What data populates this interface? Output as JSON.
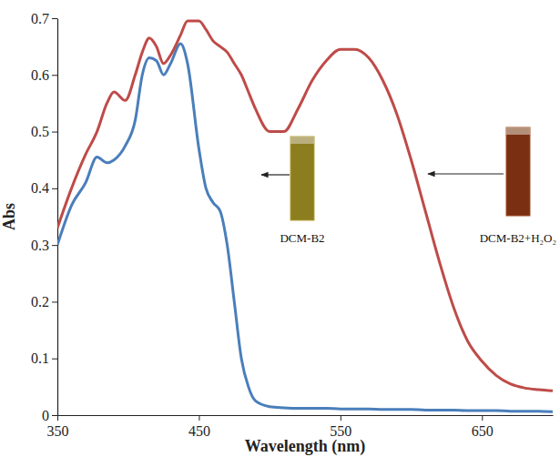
{
  "chart_data": {
    "type": "line",
    "x_label": "Wavelength (nm)",
    "y_label": "Abs",
    "x": [
      350,
      360,
      370,
      378,
      385,
      390,
      398,
      405,
      410,
      415,
      420,
      425,
      430,
      437,
      442,
      450,
      455,
      460,
      465,
      470,
      475,
      480,
      485,
      490,
      500,
      510,
      520,
      530,
      540,
      550,
      560,
      570,
      580,
      590,
      600,
      610,
      620,
      630,
      640,
      650,
      660,
      670,
      680,
      690,
      700
    ],
    "series": [
      {
        "name": "DCM-B2",
        "color": "#4a7ebb",
        "values": [
          0.3,
          0.37,
          0.41,
          0.455,
          0.445,
          0.45,
          0.475,
          0.52,
          0.6,
          0.63,
          0.625,
          0.6,
          0.62,
          0.655,
          0.62,
          0.47,
          0.4,
          0.375,
          0.36,
          0.3,
          0.2,
          0.1,
          0.05,
          0.025,
          0.015,
          0.013,
          0.012,
          0.012,
          0.012,
          0.011,
          0.011,
          0.011,
          0.01,
          0.01,
          0.01,
          0.009,
          0.009,
          0.009,
          0.008,
          0.008,
          0.008,
          0.007,
          0.007,
          0.007,
          0.006
        ]
      },
      {
        "name": "DCM-B2+H₂O₂",
        "color": "#be4b48",
        "values": [
          0.33,
          0.4,
          0.46,
          0.5,
          0.55,
          0.57,
          0.555,
          0.6,
          0.64,
          0.665,
          0.65,
          0.62,
          0.635,
          0.67,
          0.695,
          0.695,
          0.68,
          0.66,
          0.65,
          0.64,
          0.62,
          0.6,
          0.57,
          0.54,
          0.5,
          0.5,
          0.54,
          0.59,
          0.625,
          0.645,
          0.645,
          0.63,
          0.59,
          0.53,
          0.45,
          0.36,
          0.27,
          0.19,
          0.13,
          0.095,
          0.07,
          0.055,
          0.048,
          0.045,
          0.043
        ]
      }
    ],
    "xlim": [
      350,
      700
    ],
    "xticks": [
      350,
      450,
      550,
      650
    ],
    "ylim": [
      0,
      0.7
    ],
    "yticks": [
      0,
      0.1,
      0.2,
      0.3,
      0.4,
      0.5,
      0.6,
      0.7
    ],
    "grid": false
  }
}
